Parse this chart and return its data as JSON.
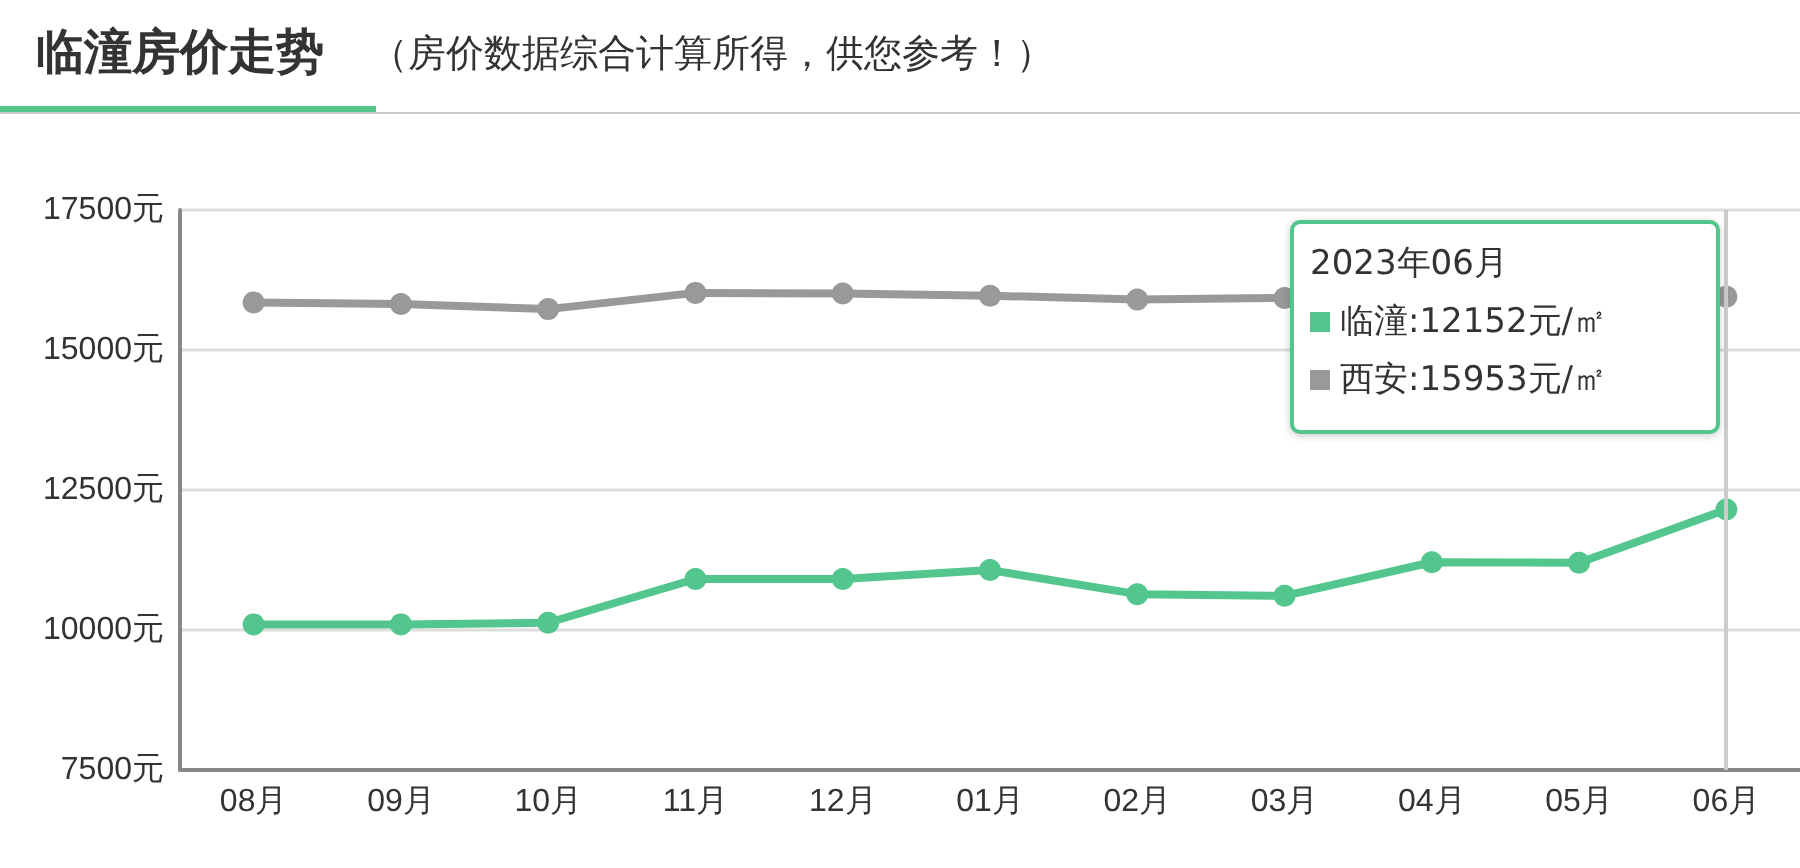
{
  "chart_data": {
    "type": "line",
    "title": "临潼房价走势",
    "subtitle": "（房价数据综合计算所得，供您参考！）",
    "categories": [
      "08月",
      "09月",
      "10月",
      "11月",
      "12月",
      "01月",
      "02月",
      "03月",
      "04月",
      "05月",
      "06月"
    ],
    "series": [
      {
        "name": "临潼",
        "color": "#52c68c",
        "values": [
          10100,
          10100,
          10130,
          10910,
          10910,
          11070,
          10640,
          10610,
          11210,
          11200,
          12152
        ]
      },
      {
        "name": "西安",
        "color": "#999999",
        "values": [
          15850,
          15820,
          15730,
          16020,
          16010,
          15970,
          15900,
          15930,
          null,
          null,
          15953
        ]
      }
    ],
    "ylim": [
      7500,
      17500
    ],
    "yticks": [
      {
        "value": 7500,
        "label": "7500元"
      },
      {
        "value": 10000,
        "label": "10000元"
      },
      {
        "value": 12500,
        "label": "12500元"
      },
      {
        "value": 15000,
        "label": "15000元"
      },
      {
        "value": 17500,
        "label": "17500元"
      }
    ],
    "ref_lines": [
      {
        "axis": "x",
        "value": "06月",
        "color": "#cccccc"
      }
    ],
    "annotations": [
      "2023年06月",
      ":12152元/㎡",
      ":15953元/㎡"
    ],
    "grid": "y",
    "legend": "top right",
    "marker": "circle",
    "line_style": "solid"
  }
}
